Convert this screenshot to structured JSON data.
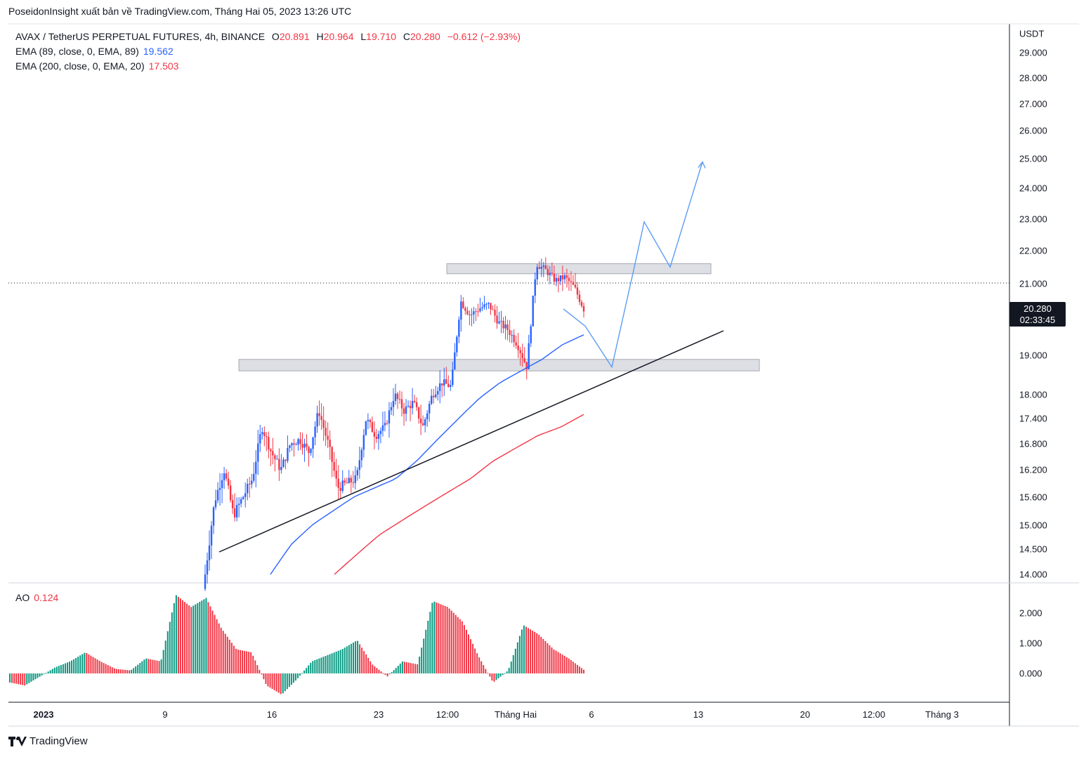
{
  "header": {
    "published_by": "PoseidonInsight xuất bản về TradingView.com, Tháng Hai 05, 2023 13:26 UTC"
  },
  "legend": {
    "symbol_line": "AVAX / TetherUS PERPETUAL FUTURES, 4h, BINANCE",
    "ohlc": {
      "O": "20.891",
      "H": "20.964",
      "L": "19.710",
      "C": "20.280",
      "change": "−0.612 (−2.93%)"
    },
    "ema89_label": "EMA (89, close, 0, EMA, 89)",
    "ema89_value": "19.562",
    "ema200_label": "EMA (200, close, 0, EMA, 20)",
    "ema200_value": "17.503"
  },
  "ao": {
    "label": "AO",
    "value": "0.124"
  },
  "price_badge": {
    "price": "20.280",
    "countdown": "02:33:45"
  },
  "brand": {
    "name": "TradingView"
  },
  "colors": {
    "up": "#089981",
    "up_candle": "#2962ff",
    "down": "#f23645",
    "ema89": "#2962ff",
    "ema200": "#f23645",
    "zone": "#d1d4dc"
  },
  "chart_data": {
    "type": "candlestick",
    "y_unit": "USDT",
    "y_ticks": [
      "29.000",
      "28.000",
      "27.000",
      "26.000",
      "25.000",
      "24.000",
      "23.000",
      "22.000",
      "21.000",
      "19.000",
      "18.000",
      "17.400",
      "16.800",
      "16.200",
      "15.600",
      "15.000",
      "14.500",
      "14.000"
    ],
    "ao_ticks": [
      "2.000",
      "1.000",
      "0.000"
    ],
    "x_ticks": [
      "2023",
      "9",
      "16",
      "23",
      "12:00",
      "Tháng Hai",
      "6",
      "13",
      "20",
      "12:00",
      "Tháng 3"
    ],
    "last_price": 20.28,
    "support_zones": [
      {
        "low": 18.6,
        "high": 18.9
      },
      {
        "low": 21.3,
        "high": 21.6
      }
    ],
    "close_path": [
      14.0,
      15.5,
      16.2,
      15.2,
      15.6,
      16.0,
      17.2,
      16.6,
      16.2,
      16.8,
      16.9,
      16.6,
      17.6,
      16.8,
      15.8,
      15.9,
      16.0,
      17.4,
      17.0,
      17.2,
      18.0,
      17.6,
      17.8,
      17.2,
      18.0,
      18.3,
      18.2,
      20.5,
      20.1,
      20.3,
      20.4,
      19.9,
      19.7,
      19.3,
      18.7,
      21.6,
      21.4,
      21.1,
      21.2,
      20.9,
      20.28
    ],
    "ao_path": [
      -0.3,
      -0.4,
      -0.1,
      0.2,
      0.4,
      0.7,
      0.4,
      0.15,
      0.1,
      0.5,
      0.4,
      2.6,
      2.2,
      2.5,
      1.5,
      0.8,
      0.7,
      -0.4,
      -0.7,
      -0.2,
      0.4,
      0.6,
      0.8,
      1.1,
      0.3,
      -0.1,
      0.4,
      0.3,
      2.4,
      2.2,
      1.7,
      0.6,
      -0.3,
      0.1,
      1.6,
      1.3,
      0.8,
      0.5,
      0.124
    ],
    "ema89_path": [
      14.0,
      14.6,
      15.0,
      15.3,
      15.6,
      15.8,
      16.0,
      16.4,
      16.9,
      17.4,
      17.9,
      18.3,
      18.6,
      18.9,
      19.3,
      19.56
    ],
    "ema200_path": [
      14.0,
      14.4,
      14.8,
      15.1,
      15.4,
      15.7,
      16.0,
      16.4,
      16.7,
      17.0,
      17.2,
      17.503
    ],
    "projection_path": [
      20.28,
      19.8,
      18.7,
      21.5,
      22.9,
      21.5,
      24.9
    ]
  }
}
